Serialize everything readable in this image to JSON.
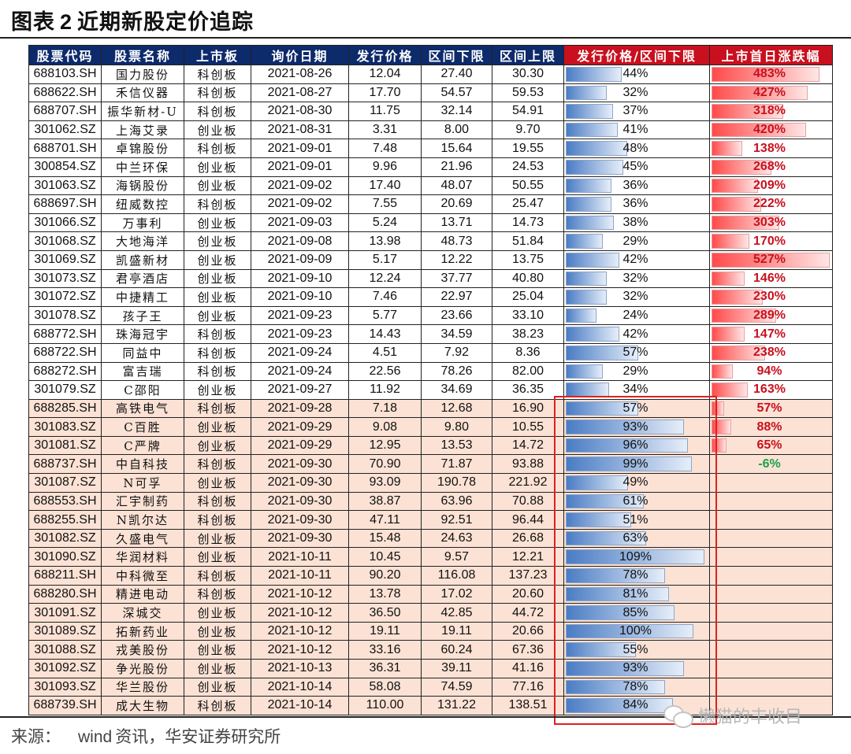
{
  "title": {
    "prefix": "图表",
    "number": "2",
    "text": "近期新股定价追踪"
  },
  "columns": [
    "股票代码",
    "股票名称",
    "上市板",
    "询价日期",
    "发行价格",
    "区间下限",
    "区间上限",
    "发行价格/区间下限",
    "上市首日涨跌幅"
  ],
  "colors": {
    "header_blue": "#0d2a6b",
    "header_red": "#c8101e",
    "highlight_row": "#fbe2d5",
    "bar_blue": "#4a7cc4",
    "bar_red": "#ff4a4a",
    "positive_text": "#c8101e",
    "negative_text": "#1aa34a",
    "callout_border": "#e0201e"
  },
  "rows": [
    {
      "code": "688103.SH",
      "name": "国力股份",
      "board": "科创板",
      "date": "2021-08-26",
      "price": "12.04",
      "low": "27.40",
      "high": "30.30",
      "ratio": "44%",
      "ratio_val": 44,
      "change": "483%",
      "change_val": 483,
      "hl": false
    },
    {
      "code": "688622.SH",
      "name": "禾信仪器",
      "board": "科创板",
      "date": "2021-08-27",
      "price": "17.70",
      "low": "54.57",
      "high": "59.53",
      "ratio": "32%",
      "ratio_val": 32,
      "change": "427%",
      "change_val": 427,
      "hl": false
    },
    {
      "code": "688707.SH",
      "name": "振华新材-U",
      "board": "科创板",
      "date": "2021-08-30",
      "price": "11.75",
      "low": "32.14",
      "high": "54.91",
      "ratio": "37%",
      "ratio_val": 37,
      "change": "318%",
      "change_val": 318,
      "hl": false
    },
    {
      "code": "301062.SZ",
      "name": "上海艾录",
      "board": "创业板",
      "date": "2021-08-31",
      "price": "3.31",
      "low": "8.00",
      "high": "9.70",
      "ratio": "41%",
      "ratio_val": 41,
      "change": "420%",
      "change_val": 420,
      "hl": false
    },
    {
      "code": "688701.SH",
      "name": "卓锦股份",
      "board": "科创板",
      "date": "2021-09-01",
      "price": "7.48",
      "low": "15.64",
      "high": "19.55",
      "ratio": "48%",
      "ratio_val": 48,
      "change": "138%",
      "change_val": 138,
      "hl": false
    },
    {
      "code": "300854.SZ",
      "name": "中兰环保",
      "board": "创业板",
      "date": "2021-09-01",
      "price": "9.96",
      "low": "21.96",
      "high": "24.53",
      "ratio": "45%",
      "ratio_val": 45,
      "change": "268%",
      "change_val": 268,
      "hl": false
    },
    {
      "code": "301063.SZ",
      "name": "海锅股份",
      "board": "创业板",
      "date": "2021-09-02",
      "price": "17.40",
      "low": "48.07",
      "high": "50.55",
      "ratio": "36%",
      "ratio_val": 36,
      "change": "209%",
      "change_val": 209,
      "hl": false
    },
    {
      "code": "688697.SH",
      "name": "纽威数控",
      "board": "科创板",
      "date": "2021-09-02",
      "price": "7.55",
      "low": "20.69",
      "high": "25.47",
      "ratio": "36%",
      "ratio_val": 36,
      "change": "222%",
      "change_val": 222,
      "hl": false
    },
    {
      "code": "301066.SZ",
      "name": "万事利",
      "board": "创业板",
      "date": "2021-09-03",
      "price": "5.24",
      "low": "13.71",
      "high": "14.73",
      "ratio": "38%",
      "ratio_val": 38,
      "change": "303%",
      "change_val": 303,
      "hl": false
    },
    {
      "code": "301068.SZ",
      "name": "大地海洋",
      "board": "创业板",
      "date": "2021-09-08",
      "price": "13.98",
      "low": "48.73",
      "high": "51.84",
      "ratio": "29%",
      "ratio_val": 29,
      "change": "170%",
      "change_val": 170,
      "hl": false
    },
    {
      "code": "301069.SZ",
      "name": "凯盛新材",
      "board": "创业板",
      "date": "2021-09-09",
      "price": "5.17",
      "low": "12.22",
      "high": "13.75",
      "ratio": "42%",
      "ratio_val": 42,
      "change": "527%",
      "change_val": 527,
      "hl": false
    },
    {
      "code": "301073.SZ",
      "name": "君亭酒店",
      "board": "创业板",
      "date": "2021-09-10",
      "price": "12.24",
      "low": "37.77",
      "high": "40.80",
      "ratio": "32%",
      "ratio_val": 32,
      "change": "146%",
      "change_val": 146,
      "hl": false
    },
    {
      "code": "301072.SZ",
      "name": "中捷精工",
      "board": "创业板",
      "date": "2021-09-10",
      "price": "7.46",
      "low": "22.97",
      "high": "25.04",
      "ratio": "32%",
      "ratio_val": 32,
      "change": "230%",
      "change_val": 230,
      "hl": false
    },
    {
      "code": "301078.SZ",
      "name": "孩子王",
      "board": "创业板",
      "date": "2021-09-23",
      "price": "5.77",
      "low": "23.66",
      "high": "33.10",
      "ratio": "24%",
      "ratio_val": 24,
      "change": "289%",
      "change_val": 289,
      "hl": false
    },
    {
      "code": "688772.SH",
      "name": "珠海冠宇",
      "board": "科创板",
      "date": "2021-09-23",
      "price": "14.43",
      "low": "34.59",
      "high": "38.23",
      "ratio": "42%",
      "ratio_val": 42,
      "change": "147%",
      "change_val": 147,
      "hl": false
    },
    {
      "code": "688722.SH",
      "name": "同益中",
      "board": "科创板",
      "date": "2021-09-24",
      "price": "4.51",
      "low": "7.92",
      "high": "8.36",
      "ratio": "57%",
      "ratio_val": 57,
      "change": "238%",
      "change_val": 238,
      "hl": false
    },
    {
      "code": "688272.SH",
      "name": "富吉瑞",
      "board": "科创板",
      "date": "2021-09-24",
      "price": "22.56",
      "low": "78.26",
      "high": "82.00",
      "ratio": "29%",
      "ratio_val": 29,
      "change": "94%",
      "change_val": 94,
      "hl": false
    },
    {
      "code": "301079.SZ",
      "name": "C邵阳",
      "board": "创业板",
      "date": "2021-09-27",
      "price": "11.92",
      "low": "34.69",
      "high": "36.35",
      "ratio": "34%",
      "ratio_val": 34,
      "change": "163%",
      "change_val": 163,
      "hl": false
    },
    {
      "code": "688285.SH",
      "name": "高铁电气",
      "board": "科创板",
      "date": "2021-09-28",
      "price": "7.18",
      "low": "12.68",
      "high": "16.90",
      "ratio": "57%",
      "ratio_val": 57,
      "change": "57%",
      "change_val": 57,
      "hl": true
    },
    {
      "code": "301083.SZ",
      "name": "C百胜",
      "board": "创业板",
      "date": "2021-09-29",
      "price": "9.08",
      "low": "9.80",
      "high": "10.55",
      "ratio": "93%",
      "ratio_val": 93,
      "change": "88%",
      "change_val": 88,
      "hl": true
    },
    {
      "code": "301081.SZ",
      "name": "C严牌",
      "board": "创业板",
      "date": "2021-09-29",
      "price": "12.95",
      "low": "13.53",
      "high": "14.72",
      "ratio": "96%",
      "ratio_val": 96,
      "change": "65%",
      "change_val": 65,
      "hl": true
    },
    {
      "code": "688737.SH",
      "name": "中自科技",
      "board": "科创板",
      "date": "2021-09-30",
      "price": "70.90",
      "low": "71.87",
      "high": "93.88",
      "ratio": "99%",
      "ratio_val": 99,
      "change": "-6%",
      "change_val": -6,
      "hl": true
    },
    {
      "code": "301087.SZ",
      "name": "N可孚",
      "board": "创业板",
      "date": "2021-09-30",
      "price": "93.09",
      "low": "190.78",
      "high": "221.92",
      "ratio": "49%",
      "ratio_val": 49,
      "change": "",
      "change_val": null,
      "hl": true
    },
    {
      "code": "688553.SH",
      "name": "汇宇制药",
      "board": "科创板",
      "date": "2021-09-30",
      "price": "38.87",
      "low": "63.96",
      "high": "70.88",
      "ratio": "61%",
      "ratio_val": 61,
      "change": "",
      "change_val": null,
      "hl": true
    },
    {
      "code": "688255.SH",
      "name": "N凯尔达",
      "board": "科创板",
      "date": "2021-09-30",
      "price": "47.11",
      "low": "92.51",
      "high": "96.44",
      "ratio": "51%",
      "ratio_val": 51,
      "change": "",
      "change_val": null,
      "hl": true
    },
    {
      "code": "301082.SZ",
      "name": "久盛电气",
      "board": "创业板",
      "date": "2021-09-30",
      "price": "15.48",
      "low": "24.63",
      "high": "26.68",
      "ratio": "63%",
      "ratio_val": 63,
      "change": "",
      "change_val": null,
      "hl": true
    },
    {
      "code": "301090.SZ",
      "name": "华润材料",
      "board": "创业板",
      "date": "2021-10-11",
      "price": "10.45",
      "low": "9.57",
      "high": "12.21",
      "ratio": "109%",
      "ratio_val": 109,
      "change": "",
      "change_val": null,
      "hl": true
    },
    {
      "code": "688211.SH",
      "name": "中科微至",
      "board": "科创板",
      "date": "2021-10-11",
      "price": "90.20",
      "low": "116.08",
      "high": "137.23",
      "ratio": "78%",
      "ratio_val": 78,
      "change": "",
      "change_val": null,
      "hl": true
    },
    {
      "code": "688280.SH",
      "name": "精进电动",
      "board": "科创板",
      "date": "2021-10-12",
      "price": "13.78",
      "low": "17.02",
      "high": "20.60",
      "ratio": "81%",
      "ratio_val": 81,
      "change": "",
      "change_val": null,
      "hl": true
    },
    {
      "code": "301091.SZ",
      "name": "深城交",
      "board": "创业板",
      "date": "2021-10-12",
      "price": "36.50",
      "low": "42.85",
      "high": "44.72",
      "ratio": "85%",
      "ratio_val": 85,
      "change": "",
      "change_val": null,
      "hl": true
    },
    {
      "code": "301089.SZ",
      "name": "拓新药业",
      "board": "创业板",
      "date": "2021-10-12",
      "price": "19.11",
      "low": "19.11",
      "high": "20.66",
      "ratio": "100%",
      "ratio_val": 100,
      "change": "",
      "change_val": null,
      "hl": true
    },
    {
      "code": "301088.SZ",
      "name": "戎美股份",
      "board": "创业板",
      "date": "2021-10-12",
      "price": "33.16",
      "low": "60.24",
      "high": "67.36",
      "ratio": "55%",
      "ratio_val": 55,
      "change": "",
      "change_val": null,
      "hl": true
    },
    {
      "code": "301092.SZ",
      "name": "争光股份",
      "board": "创业板",
      "date": "2021-10-13",
      "price": "36.31",
      "low": "39.11",
      "high": "41.16",
      "ratio": "93%",
      "ratio_val": 93,
      "change": "",
      "change_val": null,
      "hl": true
    },
    {
      "code": "301093.SZ",
      "name": "华兰股份",
      "board": "创业板",
      "date": "2021-10-14",
      "price": "58.08",
      "low": "74.59",
      "high": "77.16",
      "ratio": "78%",
      "ratio_val": 78,
      "change": "",
      "change_val": null,
      "hl": true
    },
    {
      "code": "688739.SH",
      "name": "成大生物",
      "board": "科创板",
      "date": "2021-10-14",
      "price": "110.00",
      "low": "131.22",
      "high": "138.51",
      "ratio": "84%",
      "ratio_val": 84,
      "change": "",
      "change_val": null,
      "hl": true
    }
  ],
  "source": {
    "label": "来源：",
    "provider": "wind",
    "text": "资讯，华安证券研究所"
  },
  "watermark": {
    "icon": "wechat-icon",
    "text": "懒猫的丰收目"
  }
}
